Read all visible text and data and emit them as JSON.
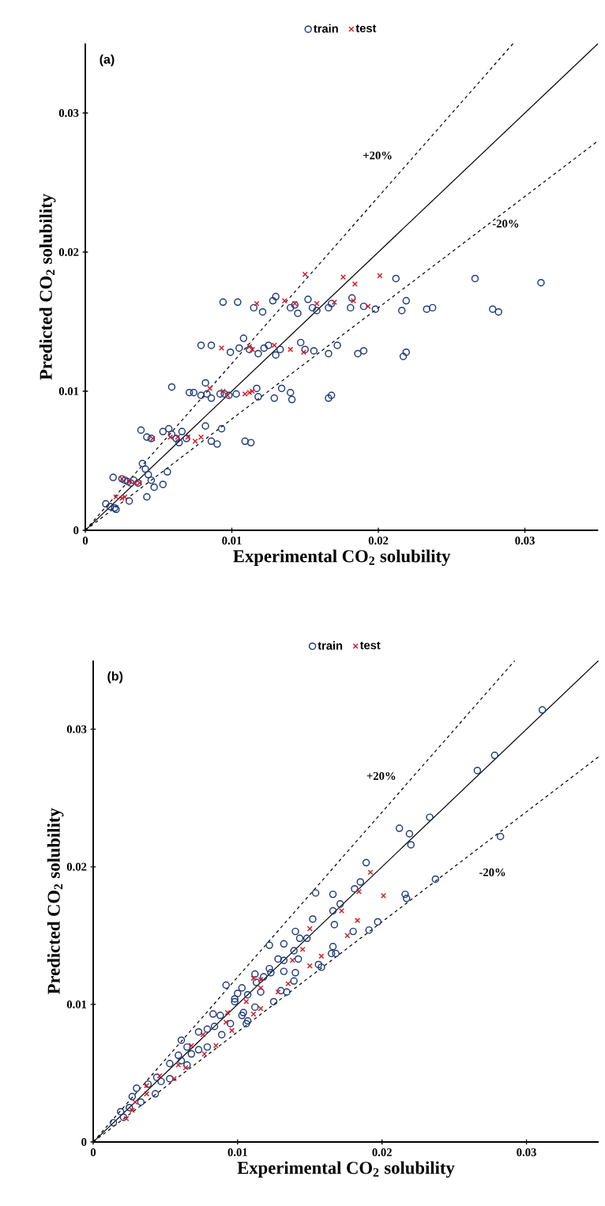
{
  "chart_data": [
    {
      "type": "scatter",
      "title": "(a)",
      "xlabel": "Experimental CO$_{2}$ solubility",
      "ylabel": "Predicted CO$_{2}$ solubility",
      "xlim": [
        0,
        0.035
      ],
      "ylim": [
        0,
        0.035
      ],
      "xticks": [
        0,
        0.01,
        0.02,
        0.03
      ],
      "yticks": [
        0,
        0.01,
        0.02,
        0.03
      ],
      "legend": "top",
      "annotations": [
        "+20%",
        "-20%"
      ],
      "series": [
        {
          "name": "train",
          "color": "#1f3a7a",
          "marker": "circle",
          "x": [
            0.0014,
            0.0017,
            0.002,
            0.0021,
            0.0019,
            0.0025,
            0.0027,
            0.0029,
            0.0031,
            0.0033,
            0.0036,
            0.003,
            0.0039,
            0.0041,
            0.0043,
            0.0045,
            0.0042,
            0.0047,
            0.0053,
            0.0056,
            0.0038,
            0.0042,
            0.0045,
            0.0053,
            0.0057,
            0.0059,
            0.0062,
            0.0064,
            0.0066,
            0.0069,
            0.0071,
            0.0059,
            0.0074,
            0.0079,
            0.0083,
            0.0082,
            0.0086,
            0.0092,
            0.0095,
            0.0098,
            0.0103,
            0.0093,
            0.0086,
            0.009,
            0.0082,
            0.0109,
            0.0113,
            0.0117,
            0.0118,
            0.014,
            0.0141,
            0.0129,
            0.0134,
            0.0166,
            0.0168,
            0.0172,
            0.0156,
            0.0147,
            0.015,
            0.0186,
            0.019,
            0.0217,
            0.0219,
            0.0166,
            0.0079,
            0.0086,
            0.0094,
            0.0104,
            0.0108,
            0.0105,
            0.0099,
            0.0112,
            0.0118,
            0.0122,
            0.0125,
            0.013,
            0.0133,
            0.0128,
            0.013,
            0.0121,
            0.014,
            0.0143,
            0.0145,
            0.0152,
            0.0155,
            0.0158,
            0.0166,
            0.0168,
            0.0181,
            0.0182,
            0.019,
            0.0198,
            0.0212,
            0.0216,
            0.0219,
            0.0233,
            0.0237,
            0.0266,
            0.0278,
            0.0282,
            0.0311,
            0.0115
          ],
          "values": [
            0.0019,
            0.0017,
            0.0016,
            0.0015,
            0.0038,
            0.0037,
            0.0036,
            0.0035,
            0.0034,
            0.0036,
            0.0034,
            0.0021,
            0.0048,
            0.0044,
            0.004,
            0.0036,
            0.0024,
            0.0031,
            0.0033,
            0.0042,
            0.0072,
            0.0067,
            0.0066,
            0.0071,
            0.0073,
            0.0069,
            0.0066,
            0.0063,
            0.0071,
            0.0066,
            0.0099,
            0.0103,
            0.0099,
            0.0097,
            0.0098,
            0.0106,
            0.0095,
            0.0098,
            0.0098,
            0.0097,
            0.0098,
            0.0073,
            0.0064,
            0.0062,
            0.0075,
            0.0064,
            0.0063,
            0.0102,
            0.0096,
            0.0099,
            0.0094,
            0.0095,
            0.0102,
            0.0095,
            0.0097,
            0.0133,
            0.0129,
            0.0135,
            0.013,
            0.0127,
            0.0129,
            0.0125,
            0.0128,
            0.0127,
            0.0133,
            0.0133,
            0.0164,
            0.0164,
            0.0138,
            0.0131,
            0.0128,
            0.013,
            0.0127,
            0.0131,
            0.0133,
            0.0126,
            0.013,
            0.0165,
            0.0168,
            0.0157,
            0.016,
            0.0162,
            0.0156,
            0.0166,
            0.016,
            0.0158,
            0.016,
            0.0163,
            0.016,
            0.0167,
            0.0161,
            0.0159,
            0.0181,
            0.0158,
            0.0165,
            0.0159,
            0.016,
            0.0181,
            0.0159,
            0.0157,
            0.0178,
            0.016
          ]
        },
        {
          "name": "test",
          "color": "#d0202a",
          "marker": "cross",
          "x": [
            0.0021,
            0.0025,
            0.0027,
            0.0025,
            0.003,
            0.0034,
            0.0037,
            0.0046,
            0.0058,
            0.0063,
            0.007,
            0.0075,
            0.0079,
            0.0085,
            0.0093,
            0.0094,
            0.0097,
            0.0109,
            0.0112,
            0.0114,
            0.0112,
            0.0114,
            0.0117,
            0.0129,
            0.0136,
            0.014,
            0.0143,
            0.0149,
            0.015,
            0.0158,
            0.017,
            0.0176,
            0.0183,
            0.0184,
            0.0193,
            0.0201
          ],
          "values": [
            0.0024,
            0.0023,
            0.0024,
            0.0037,
            0.0035,
            0.0034,
            0.0034,
            0.0066,
            0.0067,
            0.0067,
            0.0067,
            0.0064,
            0.0067,
            0.0102,
            0.0131,
            0.01,
            0.0097,
            0.0098,
            0.0099,
            0.01,
            0.0132,
            0.013,
            0.0163,
            0.0133,
            0.0165,
            0.013,
            0.0163,
            0.0128,
            0.0184,
            0.0163,
            0.0164,
            0.0182,
            0.0165,
            0.0177,
            0.0161,
            0.0183
          ]
        },
        {
          "type": "line",
          "color": "#000000",
          "line_style": "solid",
          "x": [
            0,
            0.035
          ],
          "values": [
            0,
            0.035
          ]
        },
        {
          "type": "line",
          "color": "#000000",
          "line_style": "dashed",
          "x": [
            0,
            0.0292
          ],
          "values": [
            0,
            0.035
          ]
        },
        {
          "type": "line",
          "color": "#000000",
          "line_style": "dashed",
          "x": [
            0,
            0.035
          ],
          "values": [
            0,
            0.028
          ]
        }
      ]
    },
    {
      "type": "scatter",
      "title": "(b)",
      "xlabel": "Experimental CO$_{2}$ solubility",
      "ylabel": "Predicted CO$_{2}$ solubility",
      "xlim": [
        0,
        0.035
      ],
      "ylim": [
        0,
        0.035
      ],
      "xticks": [
        0,
        0.01,
        0.02,
        0.03
      ],
      "yticks": [
        0,
        0.01,
        0.02,
        0.03
      ],
      "legend": "top",
      "annotations": [
        "+20%",
        "-20%"
      ],
      "series": [
        {
          "name": "train",
          "color": "#1f3a7a",
          "marker": "circle",
          "x": [
            0.0154,
            0.0166,
            0.0181,
            0.0185,
            0.0171,
            0.0166,
            0.0152,
            0.0167,
            0.018,
            0.0191,
            0.0197,
            0.0216,
            0.0217,
            0.014,
            0.0143,
            0.0148,
            0.0122,
            0.0132,
            0.0139,
            0.0142,
            0.0128,
            0.0132,
            0.0122,
            0.0123,
            0.0132,
            0.014,
            0.0139,
            0.0166,
            0.0168,
            0.0165,
            0.0156,
            0.0158,
            0.0112,
            0.0118,
            0.0113,
            0.0103,
            0.01,
            0.0107,
            0.0116,
            0.013,
            0.0134,
            0.0125,
            0.0112,
            0.0103,
            0.0106,
            0.0098,
            0.0278,
            0.0266,
            0.0282,
            0.0233,
            0.0212,
            0.0219,
            0.022,
            0.0237,
            0.0189,
            0.0311,
            0.0014,
            0.0019,
            0.0021,
            0.0025,
            0.0027,
            0.003,
            0.0033,
            0.0038,
            0.0043,
            0.0044,
            0.0047,
            0.0053,
            0.0053,
            0.0059,
            0.0061,
            0.0065,
            0.0061,
            0.0065,
            0.0068,
            0.0073,
            0.0079,
            0.0073,
            0.0079,
            0.0084,
            0.0089,
            0.0083,
            0.0088,
            0.0098,
            0.0104,
            0.0107,
            0.0095,
            0.0092
          ],
          "values": [
            0.0181,
            0.018,
            0.0184,
            0.0189,
            0.0173,
            0.0168,
            0.0162,
            0.0158,
            0.0153,
            0.0154,
            0.016,
            0.018,
            0.0177,
            0.0153,
            0.0148,
            0.0148,
            0.0143,
            0.0144,
            0.0139,
            0.0133,
            0.0133,
            0.0132,
            0.0126,
            0.0123,
            0.0124,
            0.0123,
            0.0117,
            0.0142,
            0.0137,
            0.0137,
            0.0129,
            0.0127,
            0.0122,
            0.012,
            0.0116,
            0.0112,
            0.0108,
            0.0107,
            0.0109,
            0.011,
            0.0109,
            0.0102,
            0.0098,
            0.0092,
            0.0086,
            0.0102,
            0.0281,
            0.027,
            0.0222,
            0.0236,
            0.0228,
            0.0224,
            0.0216,
            0.0191,
            0.0203,
            0.0314,
            0.0014,
            0.0022,
            0.0018,
            0.0025,
            0.0033,
            0.0039,
            0.0029,
            0.0042,
            0.0035,
            0.0047,
            0.0044,
            0.0046,
            0.0057,
            0.0063,
            0.0059,
            0.0056,
            0.0074,
            0.0069,
            0.0064,
            0.0067,
            0.0069,
            0.008,
            0.0082,
            0.0084,
            0.0078,
            0.0093,
            0.0092,
            0.0104,
            0.0094,
            0.0088,
            0.0086,
            0.0114
          ]
        },
        {
          "name": "test",
          "color": "#d0202a",
          "marker": "cross",
          "x": [
            0.0192,
            0.0184,
            0.0201,
            0.0172,
            0.0183,
            0.0176,
            0.015,
            0.0145,
            0.0138,
            0.0158,
            0.015,
            0.0135,
            0.0128,
            0.0116,
            0.0111,
            0.0116,
            0.0106,
            0.0116,
            0.0111,
            0.0023,
            0.0027,
            0.0029,
            0.0037,
            0.0037,
            0.0046,
            0.0056,
            0.0064,
            0.0059,
            0.0068,
            0.0077,
            0.0076,
            0.0085,
            0.0093,
            0.0092,
            0.0096
          ],
          "values": [
            0.0196,
            0.0182,
            0.0179,
            0.0168,
            0.0161,
            0.015,
            0.0155,
            0.014,
            0.0132,
            0.0135,
            0.0128,
            0.0115,
            0.0109,
            0.0118,
            0.0119,
            0.0112,
            0.0102,
            0.0097,
            0.0093,
            0.0017,
            0.0023,
            0.0029,
            0.0041,
            0.0035,
            0.0048,
            0.0046,
            0.0054,
            0.0056,
            0.007,
            0.0064,
            0.0078,
            0.007,
            0.0094,
            0.0087,
            0.0081
          ]
        },
        {
          "type": "line",
          "color": "#000000",
          "line_style": "solid",
          "x": [
            0,
            0.035
          ],
          "values": [
            0,
            0.035
          ]
        },
        {
          "type": "line",
          "color": "#000000",
          "line_style": "dashed",
          "x": [
            0,
            0.0292
          ],
          "values": [
            0,
            0.035
          ]
        },
        {
          "type": "line",
          "color": "#000000",
          "line_style": "dashed",
          "x": [
            0,
            0.035
          ],
          "values": [
            0,
            0.028
          ]
        }
      ]
    }
  ]
}
